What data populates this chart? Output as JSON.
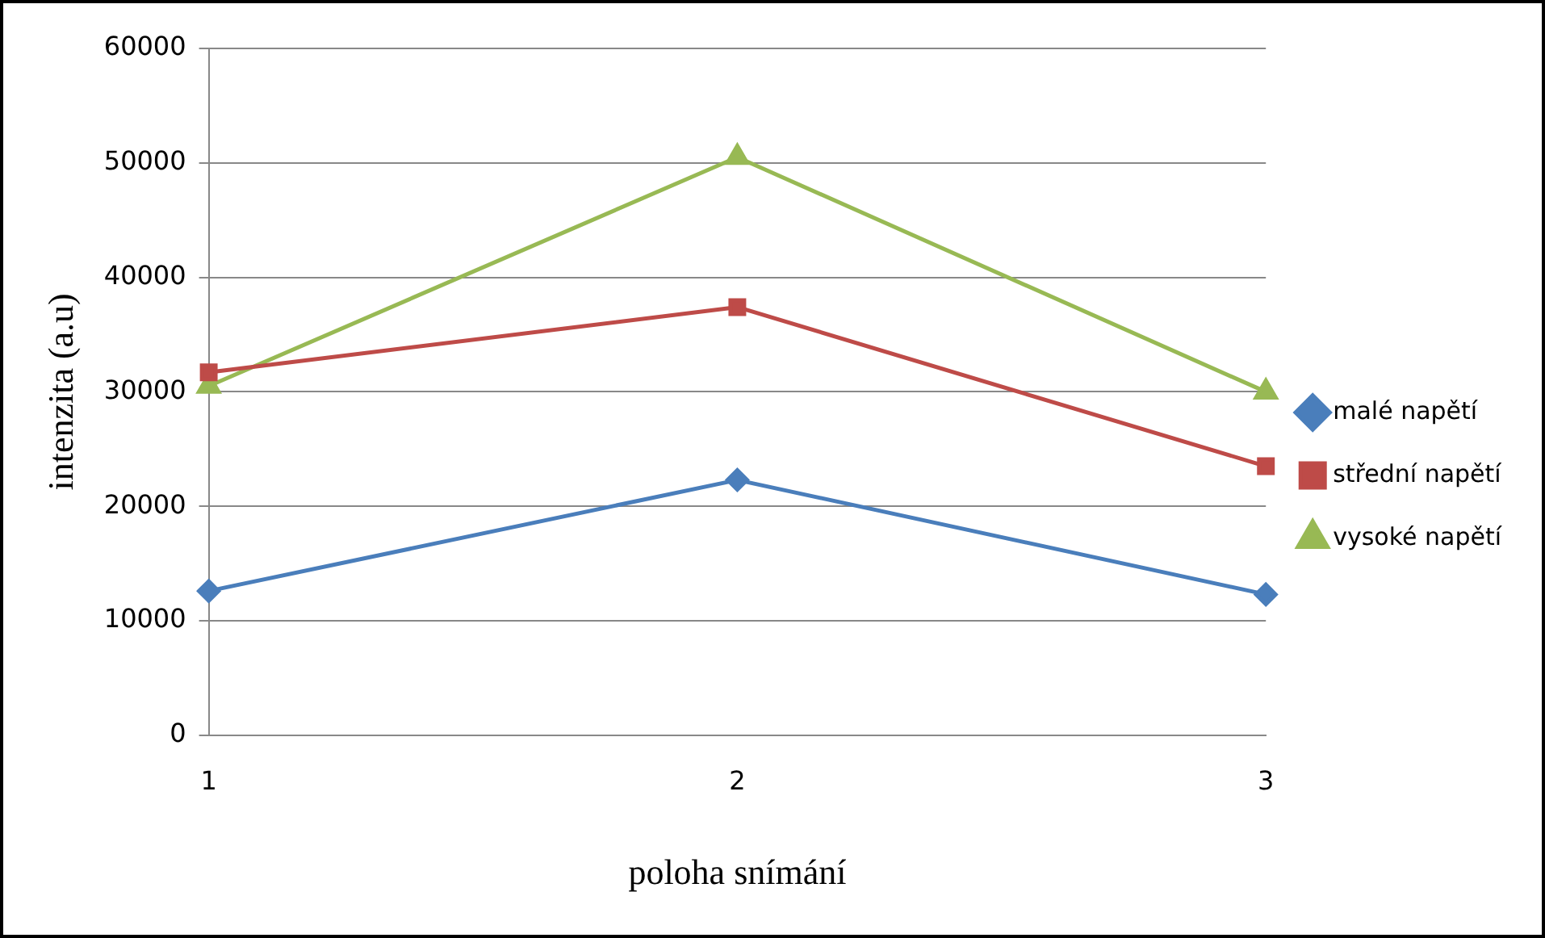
{
  "chart_data": {
    "type": "line",
    "xlabel": "poloha snímání",
    "ylabel": "intenzita (a.u)",
    "categories": [
      "1",
      "2",
      "3"
    ],
    "series": [
      {
        "name": "malé napětí",
        "color": "#4a7ebb",
        "values": [
          12600,
          22300,
          12300
        ],
        "marker": "diamond"
      },
      {
        "name": "střední napětí",
        "color": "#be4b48",
        "values": [
          31700,
          37400,
          23500
        ],
        "marker": "square"
      },
      {
        "name": "vysoké napětí",
        "color": "#98b954",
        "values": [
          30500,
          50500,
          30000
        ],
        "marker": "triangle"
      }
    ],
    "ylim": [
      0,
      60000
    ],
    "yticks": [
      0,
      10000,
      20000,
      30000,
      40000,
      50000,
      60000
    ],
    "grid": "y",
    "legend": "right",
    "line_style": "solid"
  }
}
